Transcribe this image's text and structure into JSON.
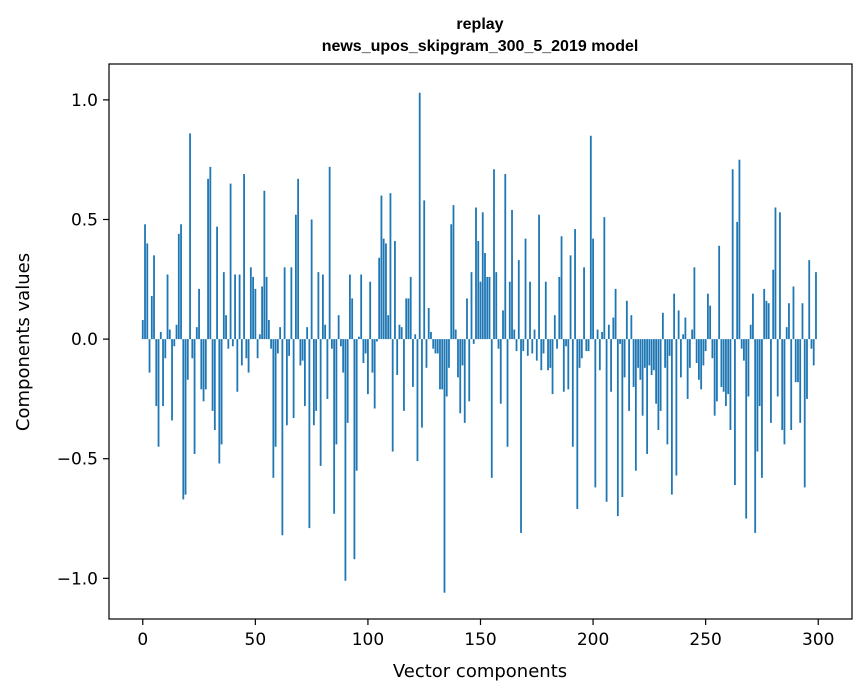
{
  "chart_data": {
    "type": "bar",
    "title": "replay",
    "subtitle": "news_upos_skipgram_300_5_2019 model",
    "xlabel": "Vector components",
    "ylabel": "Components values",
    "xlim": [
      -15,
      315
    ],
    "ylim": [
      -1.17,
      1.15
    ],
    "xticks": [
      0,
      50,
      100,
      150,
      200,
      250,
      300
    ],
    "xtick_labels": [
      "0",
      "50",
      "100",
      "150",
      "200",
      "250",
      "300"
    ],
    "yticks": [
      -1.0,
      -0.5,
      0.0,
      0.5,
      1.0
    ],
    "ytick_labels": [
      "−1.0",
      "−0.5",
      "0.0",
      "0.5",
      "1.0"
    ],
    "grid": false,
    "bar_color": "#1f77b4",
    "values": [
      0.08,
      0.48,
      0.4,
      -0.14,
      0.18,
      0.35,
      -0.28,
      -0.45,
      0.03,
      -0.28,
      -0.08,
      0.27,
      0.04,
      -0.34,
      -0.03,
      0.06,
      0.44,
      0.48,
      -0.67,
      -0.65,
      -0.17,
      0.86,
      -0.08,
      -0.48,
      0.05,
      0.21,
      -0.21,
      -0.26,
      -0.21,
      0.67,
      0.72,
      -0.3,
      -0.38,
      0.47,
      -0.52,
      -0.44,
      0.28,
      0.1,
      -0.04,
      0.65,
      -0.03,
      0.27,
      -0.22,
      0.27,
      -0.11,
      0.69,
      -0.08,
      -0.14,
      0.3,
      0.26,
      0.21,
      -0.08,
      0.02,
      0.22,
      0.62,
      0.26,
      0.08,
      -0.04,
      -0.58,
      -0.45,
      -0.06,
      0.05,
      -0.82,
      0.3,
      -0.36,
      -0.07,
      0.3,
      -0.33,
      0.52,
      0.67,
      -0.11,
      -0.09,
      -0.28,
      0.05,
      -0.79,
      0.5,
      -0.36,
      -0.3,
      0.28,
      -0.53,
      0.27,
      0.06,
      -0.25,
      0.72,
      -0.04,
      -0.73,
      -0.44,
      0.1,
      -0.03,
      -0.14,
      -1.01,
      -0.35,
      0.27,
      0.17,
      -0.92,
      -0.55,
      0.01,
      0.27,
      -0.1,
      -0.06,
      -0.23,
      0.24,
      -0.14,
      -0.29,
      -0.01,
      0.34,
      0.6,
      0.42,
      0.4,
      0.1,
      0.61,
      -0.47,
      0.41,
      -0.15,
      0.06,
      0.05,
      -0.3,
      0.17,
      0.17,
      0.26,
      -0.2,
      0.02,
      -0.51,
      1.03,
      -0.37,
      0.58,
      -0.12,
      0.13,
      0.03,
      -0.04,
      -0.06,
      -0.06,
      -0.21,
      -0.21,
      -1.06,
      -0.24,
      -0.12,
      0.48,
      0.56,
      0.04,
      -0.16,
      -0.31,
      -0.11,
      -0.35,
      0.17,
      -0.26,
      0.28,
      -0.02,
      0.55,
      0.41,
      0.24,
      0.53,
      0.36,
      0.26,
      0.26,
      -0.58,
      0.71,
      0.28,
      -0.04,
      -0.27,
      0.12,
      0.69,
      -0.45,
      0.24,
      0.54,
      0.04,
      -0.05,
      0.33,
      -0.81,
      -0.05,
      0.42,
      -0.07,
      0.24,
      -0.06,
      0.04,
      -0.09,
      0.52,
      -0.13,
      -0.06,
      0.24,
      -0.13,
      -0.12,
      -0.23,
      0.1,
      -0.04,
      0.26,
      0.43,
      -0.22,
      -0.03,
      -0.21,
      0.35,
      -0.45,
      0.46,
      -0.71,
      -0.12,
      -0.08,
      0.3,
      -0.05,
      -0.05,
      0.85,
      0.42,
      -0.62,
      0.04,
      -0.13,
      0.03,
      0.51,
      -0.68,
      0.06,
      -0.22,
      0.09,
      0.21,
      -0.74,
      -0.02,
      -0.66,
      -0.16,
      0.16,
      -0.3,
      0.1,
      -0.2,
      -0.55,
      -0.12,
      -0.17,
      -0.32,
      -0.12,
      -0.48,
      -0.11,
      -0.15,
      -0.13,
      -0.27,
      -0.38,
      -0.3,
      0.11,
      -0.12,
      -0.44,
      -0.07,
      -0.65,
      0.19,
      -0.57,
      0.12,
      -0.16,
      0.02,
      0.09,
      -0.25,
      -0.12,
      0.04,
      0.3,
      -0.1,
      -0.17,
      -0.21,
      -0.11,
      -0.05,
      0.19,
      0.14,
      -0.08,
      -0.32,
      -0.26,
      0.39,
      -0.2,
      -0.22,
      -0.28,
      -0.23,
      -0.38,
      0.71,
      -0.61,
      0.49,
      0.75,
      -0.04,
      -0.09,
      -0.75,
      -0.24,
      0.06,
      0.19,
      -0.81,
      -0.47,
      -0.28,
      -0.58,
      0.21,
      0.16,
      0.15,
      -0.35,
      0.29,
      0.55,
      -0.24,
      0.53,
      -0.38,
      -0.44,
      0.05,
      0.15,
      -0.38,
      0.22,
      -0.18,
      -0.18,
      -0.35,
      0.15,
      -0.62,
      -0.25,
      0.33,
      -0.04,
      -0.11,
      0.28
    ]
  }
}
